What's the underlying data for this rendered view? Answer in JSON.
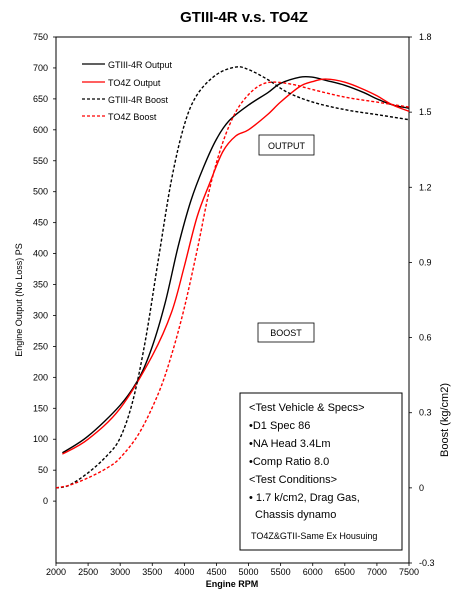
{
  "chart_data": {
    "type": "line",
    "title": "GTIII-4R v.s. TO4Z",
    "xlabel": "Engine RPM",
    "ylabel": "Engine Output (No Loss) PS",
    "y2label": "Boost (kg/cm2)",
    "xlim": [
      2000,
      7500
    ],
    "ylim": [
      -100,
      750
    ],
    "y2lim": [
      -0.3,
      1.8
    ],
    "xticks": [
      "2000",
      "2500",
      "3000",
      "3500",
      "4000",
      "4500",
      "5000",
      "5500",
      "6000",
      "6500",
      "7000",
      "7500"
    ],
    "yticks": [
      "0",
      "50",
      "100",
      "150",
      "200",
      "250",
      "300",
      "350",
      "400",
      "450",
      "500",
      "550",
      "600",
      "650",
      "700",
      "750"
    ],
    "y2ticks": [
      "-0.3",
      "0",
      "0.3",
      "0.6",
      "0.9",
      "1.2",
      "1.5",
      "1.8"
    ],
    "grid": false,
    "legend": "top-left",
    "series": [
      {
        "name": "GTIII-4R Output",
        "axis": "left",
        "color": "#000000",
        "dash": false,
        "x": [
          2100,
          2500,
          3000,
          3300,
          3500,
          3700,
          3900,
          4100,
          4300,
          4500,
          4700,
          5000,
          5300,
          5500,
          5800,
          6000,
          6200,
          6500,
          6800,
          7000,
          7250,
          7500
        ],
        "y": [
          78,
          105,
          155,
          200,
          250,
          320,
          410,
          485,
          540,
          585,
          615,
          640,
          660,
          675,
          685,
          685,
          680,
          672,
          660,
          650,
          640,
          635
        ]
      },
      {
        "name": "TO4Z Output",
        "axis": "left",
        "color": "#ff0000",
        "dash": false,
        "x": [
          2100,
          2500,
          3000,
          3500,
          3800,
          4000,
          4200,
          4400,
          4600,
          4800,
          5000,
          5300,
          5500,
          5800,
          6000,
          6200,
          6500,
          6800,
          7000,
          7250,
          7500
        ],
        "y": [
          76,
          100,
          150,
          235,
          305,
          380,
          460,
          515,
          565,
          590,
          600,
          625,
          645,
          670,
          678,
          682,
          677,
          665,
          655,
          640,
          630
        ]
      },
      {
        "name": "GTIII-4R Boost",
        "axis": "right",
        "color": "#000000",
        "dash": true,
        "x": [
          2000,
          2200,
          2500,
          2800,
          3000,
          3200,
          3400,
          3600,
          3800,
          4000,
          4200,
          4500,
          4800,
          5000,
          5300,
          5600,
          6000,
          6500,
          7000,
          7500
        ],
        "y": [
          0.0,
          0.01,
          0.06,
          0.13,
          0.2,
          0.35,
          0.6,
          0.92,
          1.23,
          1.45,
          1.57,
          1.65,
          1.68,
          1.67,
          1.63,
          1.58,
          1.54,
          1.51,
          1.49,
          1.47
        ]
      },
      {
        "name": "TO4Z Boost",
        "axis": "right",
        "color": "#ff0000",
        "dash": true,
        "x": [
          2000,
          2200,
          2500,
          2800,
          3000,
          3300,
          3600,
          3800,
          4000,
          4200,
          4400,
          4600,
          4800,
          5000,
          5200,
          5400,
          5700,
          6000,
          6500,
          7000,
          7500
        ],
        "y": [
          0.0,
          0.01,
          0.04,
          0.08,
          0.12,
          0.22,
          0.38,
          0.53,
          0.72,
          0.95,
          1.2,
          1.38,
          1.5,
          1.57,
          1.61,
          1.62,
          1.61,
          1.59,
          1.56,
          1.54,
          1.52
        ]
      }
    ],
    "annotations": [
      "OUTPUT",
      "BOOST"
    ],
    "spec_box": [
      "<Test Vehicle & Specs>",
      "•D1 Spec 86",
      "•NA Head 3.4Lm",
      "•Comp Ratio 8.0",
      "<Test Conditions>",
      "• 1.7 k/cm2, Drag Gas,",
      "Chassis dynamo",
      "TO4Z&GTII-Same Ex Housuing"
    ]
  }
}
